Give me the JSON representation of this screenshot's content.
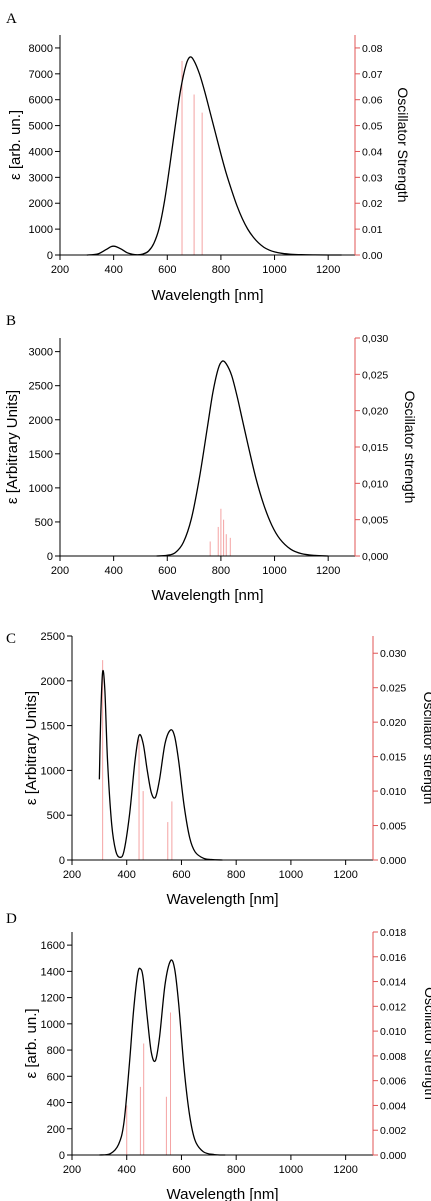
{
  "chart_data": [
    {
      "panel_label": "A",
      "type": "line",
      "xlabel": "Wavelength [nm]",
      "ylabel": "ε [arb. un.]",
      "y2label": "Oscillator Strength",
      "xlim": [
        200,
        1300
      ],
      "ylim": [
        0,
        8500
      ],
      "y2lim": [
        0,
        0.085
      ],
      "x_ticks": [
        200,
        400,
        600,
        800,
        1000,
        1200
      ],
      "x_tick_labels": [
        "200",
        "400",
        "600",
        "800",
        "1000",
        "1200"
      ],
      "y_ticks": [
        0,
        1000,
        2000,
        3000,
        4000,
        5000,
        6000,
        7000,
        8000
      ],
      "y_tick_labels": [
        "0",
        "1000",
        "2000",
        "3000",
        "4000",
        "5000",
        "6000",
        "7000",
        "8000"
      ],
      "y2_ticks": [
        0,
        0.01,
        0.02,
        0.03,
        0.04,
        0.05,
        0.06,
        0.07,
        0.08
      ],
      "y2_tick_labels": [
        "0.00",
        "0.01",
        "0.02",
        "0.03",
        "0.04",
        "0.05",
        "0.06",
        "0.07",
        "0.08"
      ],
      "series": [
        {
          "kind": "spectrum",
          "color": "#000000",
          "x": [
            300,
            340,
            370,
            390,
            400,
            410,
            430,
            450,
            470,
            490,
            510,
            530,
            550,
            570,
            590,
            610,
            630,
            650,
            670,
            685,
            700,
            720,
            740,
            760,
            780,
            800,
            820,
            840,
            860,
            880,
            900,
            920,
            940,
            960,
            980,
            1000,
            1030,
            1060,
            1100,
            1150,
            1200,
            1250
          ],
          "y": [
            0,
            40,
            200,
            320,
            340,
            320,
            220,
            90,
            30,
            10,
            40,
            150,
            450,
            1050,
            2100,
            3500,
            5000,
            6400,
            7350,
            7650,
            7500,
            7000,
            6300,
            5500,
            4700,
            3900,
            3150,
            2500,
            1900,
            1400,
            1000,
            700,
            470,
            300,
            190,
            120,
            60,
            30,
            12,
            4,
            0,
            0
          ]
        },
        {
          "kind": "oscillator_sticks",
          "color": "#f4a3a3",
          "x": [
            655,
            700,
            730
          ],
          "y": [
            0.075,
            0.062,
            0.055
          ]
        }
      ]
    },
    {
      "panel_label": "B",
      "type": "line",
      "xlabel": "Wavelength [nm]",
      "ylabel": "ε [Arbitrary Units]",
      "y2label": "Oscillator strength",
      "xlim": [
        200,
        1300
      ],
      "ylim": [
        0,
        3200
      ],
      "y2lim": [
        0,
        0.03
      ],
      "x_ticks": [
        200,
        400,
        600,
        800,
        1000,
        1200
      ],
      "x_tick_labels": [
        "200",
        "400",
        "600",
        "800",
        "1000",
        "1200"
      ],
      "y_ticks": [
        0,
        500,
        1000,
        1500,
        2000,
        2500,
        3000
      ],
      "y_tick_labels": [
        "0",
        "500",
        "1000",
        "1500",
        "2000",
        "2500",
        "3000"
      ],
      "y2_ticks": [
        0,
        0.005,
        0.01,
        0.015,
        0.02,
        0.025,
        0.03
      ],
      "y2_tick_labels": [
        "0,000",
        "0,005",
        "0,010",
        "0,015",
        "0,020",
        "0,025",
        "0,030"
      ],
      "series": [
        {
          "kind": "spectrum",
          "color": "#000000",
          "x": [
            560,
            600,
            630,
            660,
            690,
            720,
            750,
            770,
            790,
            805,
            820,
            840,
            860,
            880,
            900,
            930,
            960,
            990,
            1020,
            1060,
            1100,
            1150,
            1200
          ],
          "y": [
            0,
            10,
            50,
            200,
            550,
            1150,
            1900,
            2400,
            2750,
            2860,
            2820,
            2650,
            2350,
            2000,
            1650,
            1150,
            750,
            450,
            250,
            100,
            35,
            8,
            0
          ]
        },
        {
          "kind": "oscillator_sticks",
          "color": "#f4a3a3",
          "x": [
            760,
            790,
            800,
            810,
            820,
            835
          ],
          "y": [
            0.002,
            0.004,
            0.0065,
            0.005,
            0.003,
            0.0025
          ]
        }
      ]
    },
    {
      "panel_label": "C",
      "type": "line",
      "xlabel": "Wavelength [nm]",
      "ylabel": "ε [Arbitrary Units]",
      "y2label": "Oscillator strength",
      "xlim": [
        200,
        1300
      ],
      "ylim": [
        0,
        2500
      ],
      "y2lim": [
        0,
        0.0325
      ],
      "x_ticks": [
        200,
        400,
        600,
        800,
        1000,
        1200
      ],
      "x_tick_labels": [
        "200",
        "400",
        "600",
        "800",
        "1000",
        "1200"
      ],
      "y_ticks": [
        0,
        500,
        1000,
        1500,
        2000,
        2500
      ],
      "y_tick_labels": [
        "0",
        "500",
        "1000",
        "1500",
        "2000",
        "2500"
      ],
      "y2_ticks": [
        0,
        0.005,
        0.01,
        0.015,
        0.02,
        0.025,
        0.03
      ],
      "y2_tick_labels": [
        "0.000",
        "0.005",
        "0.010",
        "0.015",
        "0.020",
        "0.025",
        "0.030"
      ],
      "series": [
        {
          "kind": "spectrum",
          "color": "#000000",
          "x": [
            300,
            305,
            312,
            320,
            330,
            345,
            360,
            375,
            390,
            410,
            430,
            445,
            460,
            475,
            490,
            505,
            520,
            540,
            560,
            575,
            590,
            610,
            630,
            650,
            680,
            710,
            750
          ],
          "y": [
            900,
            1600,
            2100,
            1900,
            1100,
            400,
            100,
            30,
            100,
            500,
            1100,
            1390,
            1300,
            1000,
            750,
            700,
            900,
            1300,
            1450,
            1380,
            1100,
            600,
            250,
            90,
            20,
            5,
            0
          ]
        },
        {
          "kind": "oscillator_sticks",
          "color": "#f4a3a3",
          "x": [
            312,
            445,
            460,
            550,
            565
          ],
          "y": [
            0.029,
            0.0175,
            0.01,
            0.0055,
            0.0085
          ]
        }
      ]
    },
    {
      "panel_label": "D",
      "type": "line",
      "xlabel": "Wavelength [nm]",
      "ylabel": "ε [arb. un.]",
      "y2label": "Oscillator strength",
      "xlim": [
        200,
        1300
      ],
      "ylim": [
        0,
        1700
      ],
      "y2lim": [
        0,
        0.018
      ],
      "x_ticks": [
        200,
        400,
        600,
        800,
        1000,
        1200
      ],
      "x_tick_labels": [
        "200",
        "400",
        "600",
        "800",
        "1000",
        "1200"
      ],
      "y_ticks": [
        0,
        200,
        400,
        600,
        800,
        1000,
        1200,
        1400,
        1600
      ],
      "y_tick_labels": [
        "0",
        "200",
        "400",
        "600",
        "800",
        "1000",
        "1200",
        "1400",
        "1600"
      ],
      "y2_ticks": [
        0,
        0.002,
        0.004,
        0.006,
        0.008,
        0.01,
        0.012,
        0.014,
        0.016,
        0.018
      ],
      "y2_tick_labels": [
        "0.000",
        "0.002",
        "0.004",
        "0.006",
        "0.008",
        "0.010",
        "0.012",
        "0.014",
        "0.016",
        "0.018"
      ],
      "series": [
        {
          "kind": "spectrum",
          "color": "#000000",
          "x": [
            300,
            340,
            370,
            390,
            410,
            425,
            440,
            450,
            460,
            475,
            490,
            505,
            520,
            540,
            560,
            575,
            590,
            610,
            630,
            650,
            680,
            720,
            760
          ],
          "y": [
            0,
            10,
            80,
            250,
            700,
            1100,
            1380,
            1420,
            1350,
            1050,
            780,
            720,
            900,
            1300,
            1480,
            1420,
            1150,
            650,
            300,
            110,
            25,
            3,
            0
          ]
        },
        {
          "kind": "oscillator_sticks",
          "color": "#f4a3a3",
          "x": [
            400,
            450,
            462,
            545,
            560
          ],
          "y": [
            0.004,
            0.0055,
            0.009,
            0.0047,
            0.0115
          ]
        }
      ]
    }
  ]
}
